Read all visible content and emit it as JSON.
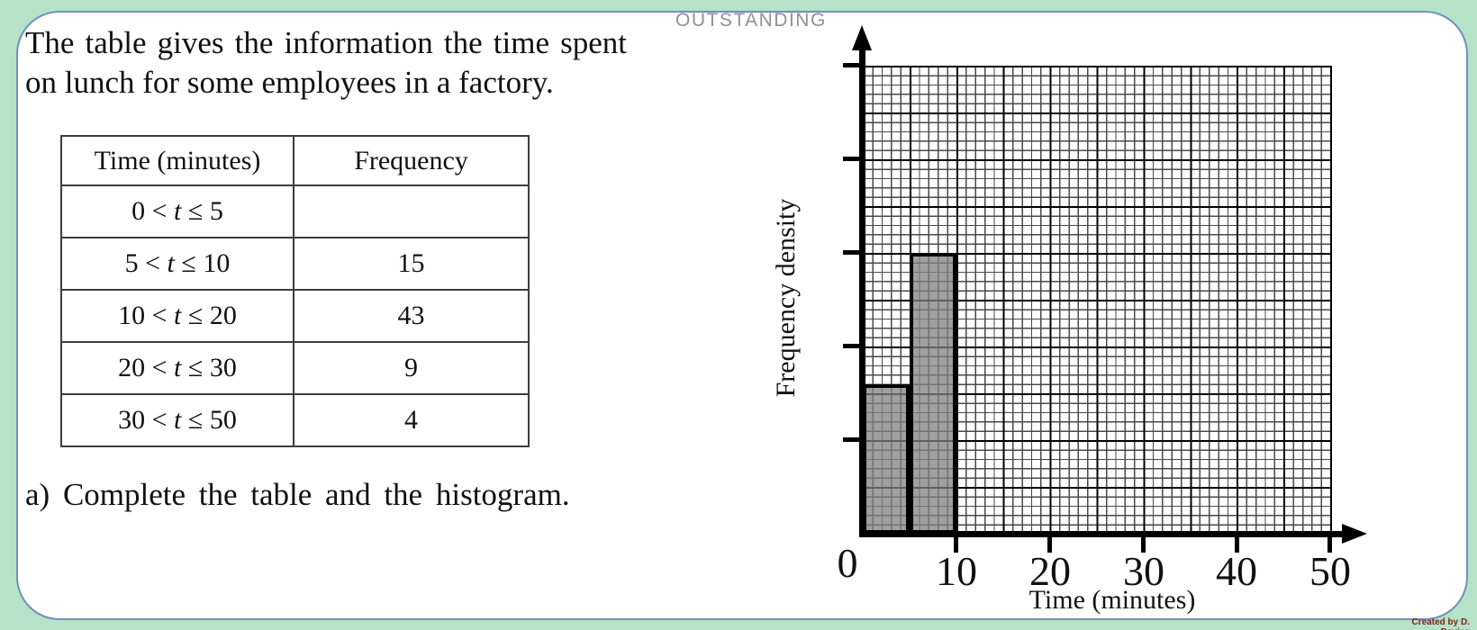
{
  "page": {
    "background_color": "#b6e2c8",
    "panel_border_color": "#7090bd",
    "watermark": "OUTSTANDING",
    "credit": "Created by D. Davies",
    "credit_color": "#7c2416"
  },
  "problem": {
    "intro": "The table gives the information the time spent on lunch for some employees in a factory.",
    "question": "a) Complete the table and the histogram."
  },
  "table": {
    "headers": [
      "Time (minutes)",
      "Frequency"
    ],
    "rows": [
      {
        "lo": "0 < ",
        "var": "t",
        "hi": " ≤ 5",
        "frequency": ""
      },
      {
        "lo": "5 < ",
        "var": "t",
        "hi": " ≤ 10",
        "frequency": "15"
      },
      {
        "lo": "10 < ",
        "var": "t",
        "hi": " ≤ 20",
        "frequency": "43"
      },
      {
        "lo": "20 < ",
        "var": "t",
        "hi": " ≤ 30",
        "frequency": "9"
      },
      {
        "lo": "30 < ",
        "var": "t",
        "hi": " ≤ 50",
        "frequency": "4"
      }
    ]
  },
  "chart_data": {
    "type": "bar",
    "subtype": "histogram",
    "title": "",
    "xlabel": "Time (minutes)",
    "ylabel": "Frequency density",
    "xlim": [
      0,
      50
    ],
    "ylim": [
      0,
      5
    ],
    "x_tick_labels": [
      "0",
      "10",
      "20",
      "30",
      "40",
      "50"
    ],
    "y_ticks": [
      1,
      2,
      3,
      4,
      5
    ],
    "y_tick_labels_shown": false,
    "grid": "fine squares of 1 minute (x) by 0.1 density (y), bold line every 5 cells",
    "bar_fill": "#8a8a8a",
    "bars": [
      {
        "interval": "0 < t ≤ 5",
        "x0": 0,
        "x1": 5,
        "frequency_density": 1.6
      },
      {
        "interval": "5 < t ≤ 10",
        "x0": 5,
        "x1": 10,
        "frequency_density": 3.0
      }
    ],
    "classes_without_bars": [
      {
        "interval": "10 < t ≤ 20",
        "frequency": 43
      },
      {
        "interval": "20 < t ≤ 30",
        "frequency": 9
      },
      {
        "interval": "30 < t ≤ 50",
        "frequency": 4
      }
    ]
  }
}
